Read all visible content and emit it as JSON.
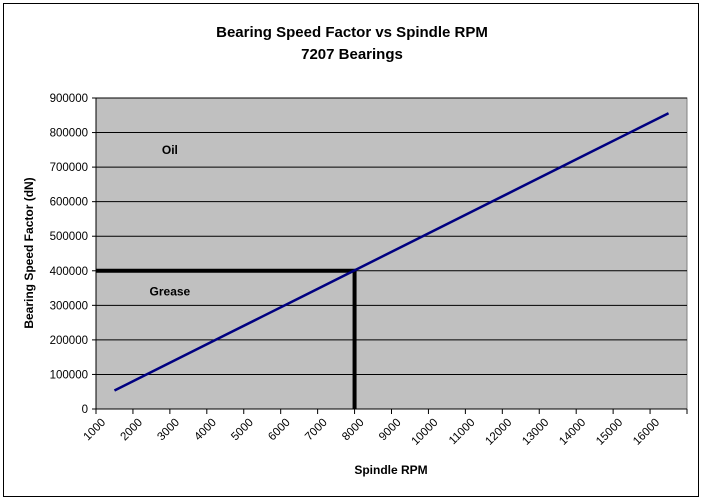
{
  "chart_data": {
    "type": "line",
    "title": "Bearing Speed Factor vs Spindle RPM",
    "subtitle": "7207 Bearings",
    "xlabel": "Spindle RPM",
    "ylabel": "Bearing Speed Factor (dN)",
    "categories": [
      1000,
      2000,
      3000,
      4000,
      5000,
      6000,
      7000,
      8000,
      9000,
      10000,
      11000,
      12000,
      13000,
      14000,
      15000,
      16000
    ],
    "series": [
      {
        "values": [
          53500,
          107000,
          160500,
          214000,
          267500,
          321000,
          374500,
          428000,
          481500,
          535000,
          588500,
          642000,
          695500,
          749000,
          802500,
          856000
        ],
        "color": "#000080"
      }
    ],
    "ylim": [
      0,
      900000
    ],
    "yticks": [
      0,
      100000,
      200000,
      300000,
      400000,
      500000,
      600000,
      700000,
      800000,
      900000
    ],
    "grid": true,
    "legend": "none",
    "plot_background": "#c0c0c0",
    "annotations": [
      {
        "text": "Oil",
        "rpm": 2500,
        "value": 750000
      },
      {
        "text": "Grease",
        "rpm": 2500,
        "value": 340000
      }
    ],
    "reference_lines": {
      "value": 400000,
      "rpm": 7500,
      "color": "#000000"
    }
  }
}
